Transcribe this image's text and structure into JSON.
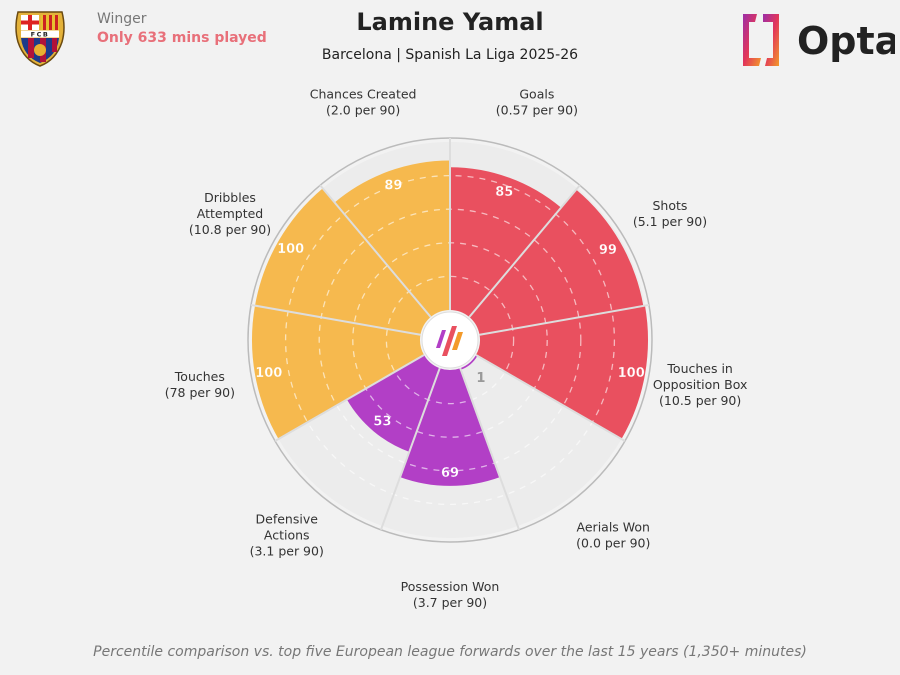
{
  "header": {
    "position": "Winger",
    "minutes_note": "Only 633 mins played",
    "title": "Lamine Yamal",
    "subtitle": "Barcelona | Spanish La Liga 2025-26",
    "logo_text": "Opta",
    "crest_text": "FCB"
  },
  "footer": "Percentile comparison vs. top five European league forwards over the last 15 years (1,350+ minutes)",
  "colors": {
    "attacking": "#E9505F",
    "defending": "#B23FC6",
    "possession": "#F6B94E",
    "empty": "#ececec"
  },
  "chart_data": {
    "type": "radar-pizza",
    "range": [
      0,
      100
    ],
    "grid": "dashed rings",
    "categories": [
      {
        "label": [
          "Goals",
          "(0.57 per 90)"
        ],
        "value": 85,
        "group": "attacking"
      },
      {
        "label": [
          "Shots",
          "(5.1 per 90)"
        ],
        "value": 99,
        "group": "attacking"
      },
      {
        "label": [
          "Touches in",
          "Opposition Box",
          "(10.5 per 90)"
        ],
        "value": 100,
        "group": "attacking"
      },
      {
        "label": [
          "Aerials Won",
          "(0.0 per 90)"
        ],
        "value": 1,
        "group": "defending"
      },
      {
        "label": [
          "Possession Won",
          "(3.7 per 90)"
        ],
        "value": 69,
        "group": "defending"
      },
      {
        "label": [
          "Defensive",
          "Actions",
          "(3.1 per 90)"
        ],
        "value": 53,
        "group": "defending"
      },
      {
        "label": [
          "Touches",
          "(78 per 90)"
        ],
        "value": 100,
        "group": "possession"
      },
      {
        "label": [
          "Dribbles",
          "Attempted",
          "(10.8 per 90)"
        ],
        "value": 100,
        "group": "possession"
      },
      {
        "label": [
          "Chances Created",
          "(2.0 per 90)"
        ],
        "value": 89,
        "group": "possession"
      }
    ]
  }
}
